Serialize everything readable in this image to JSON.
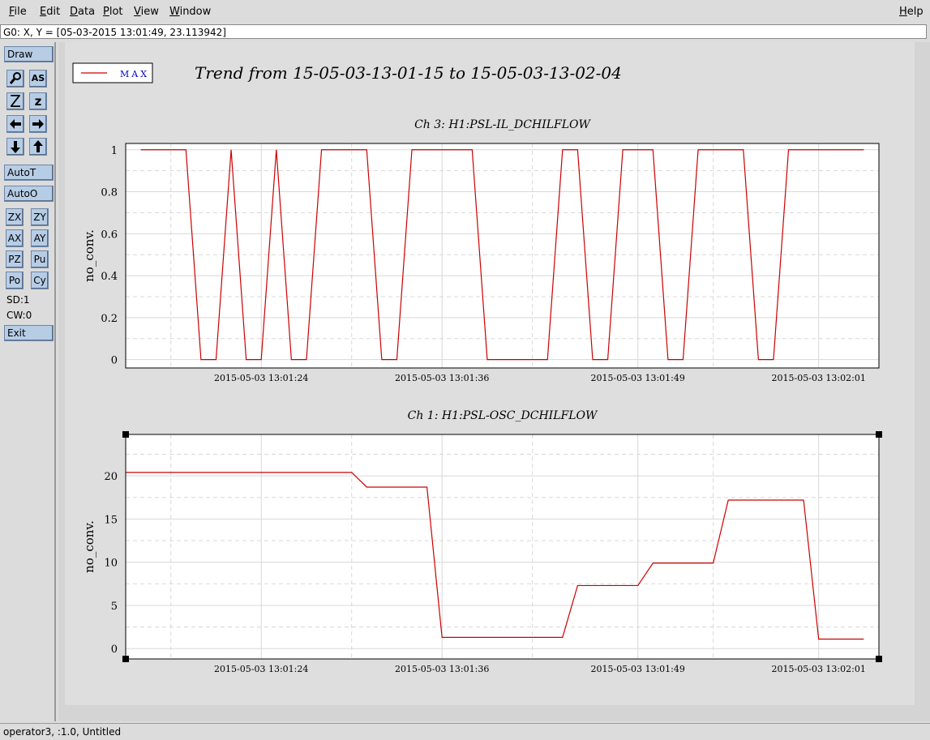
{
  "menu": [
    "File",
    "Edit",
    "Data",
    "Plot",
    "View",
    "Window"
  ],
  "help": "Help",
  "status": "G0: X, Y = [05-03-2015 13:01:49, 23.113942]",
  "toolbar": {
    "draw": "Draw",
    "icon_text": "AS",
    "zoom_in": "Z",
    "zoom_out": "z",
    "auto_t": "AutoT",
    "auto_o": "AutoO",
    "buttons": [
      "ZX",
      "ZY",
      "AX",
      "AY",
      "PZ",
      "Pu",
      "Po",
      "Cy"
    ],
    "sd": "SD:1",
    "cw": "CW:0",
    "exit": "Exit"
  },
  "footer": "operator3, :1.0, Untitled",
  "title": "Trend from 15-05-03-13-01-15 to 15-05-03-13-02-04",
  "chart_data": [
    {
      "type": "line",
      "title": "Ch 3: H1:PSL-IL_DCHILFLOW",
      "ylabel": "no_conv.",
      "x": [
        "2015-05-03 13:01:16",
        "2015-05-03 13:01:19",
        "2015-05-03 13:01:20",
        "2015-05-03 13:01:21",
        "2015-05-03 13:01:22",
        "2015-05-03 13:01:23",
        "2015-05-03 13:01:24",
        "2015-05-03 13:01:25",
        "2015-05-03 13:01:26",
        "2015-05-03 13:01:27",
        "2015-05-03 13:01:28",
        "2015-05-03 13:01:31",
        "2015-05-03 13:01:32",
        "2015-05-03 13:01:33",
        "2015-05-03 13:01:34",
        "2015-05-03 13:01:38",
        "2015-05-03 13:01:39",
        "2015-05-03 13:01:43",
        "2015-05-03 13:01:44",
        "2015-05-03 13:01:45",
        "2015-05-03 13:01:46",
        "2015-05-03 13:01:47",
        "2015-05-03 13:01:48",
        "2015-05-03 13:01:50",
        "2015-05-03 13:01:51",
        "2015-05-03 13:01:52",
        "2015-05-03 13:01:53",
        "2015-05-03 13:01:56",
        "2015-05-03 13:01:57",
        "2015-05-03 13:01:58",
        "2015-05-03 13:01:59",
        "2015-05-03 13:02:04"
      ],
      "series": [
        {
          "name": "MAX",
          "color": "#cc0000",
          "values": [
            1,
            1,
            0,
            0,
            1,
            0,
            0,
            1,
            0,
            0,
            1,
            1,
            0,
            0,
            1,
            1,
            0,
            0,
            1,
            1,
            0,
            0,
            1,
            1,
            0,
            0,
            1,
            1,
            0,
            0,
            1,
            1
          ]
        }
      ],
      "xlim": [
        "2015-05-03 13:01:15",
        "2015-05-03 13:02:05"
      ],
      "xticks": [
        "2015-05-03 13:01:24",
        "2015-05-03 13:01:36",
        "2015-05-03 13:01:49",
        "2015-05-03 13:02:01"
      ],
      "ylim": [
        -0.04,
        1.03
      ],
      "yticks": [
        0,
        0.2,
        0.4,
        0.6,
        0.8,
        1
      ],
      "grid": true
    },
    {
      "type": "line",
      "title": "Ch 1: H1:PSL-OSC_DCHILFLOW",
      "ylabel": "no_conv.",
      "x": [
        "2015-05-03 13:01:15",
        "2015-05-03 13:01:30",
        "2015-05-03 13:01:31",
        "2015-05-03 13:01:35",
        "2015-05-03 13:01:36",
        "2015-05-03 13:01:44",
        "2015-05-03 13:01:45",
        "2015-05-03 13:01:49",
        "2015-05-03 13:01:50",
        "2015-05-03 13:01:54",
        "2015-05-03 13:01:55",
        "2015-05-03 13:02:00",
        "2015-05-03 13:02:01",
        "2015-05-03 13:02:04"
      ],
      "series": [
        {
          "color": "#cc0000",
          "values": [
            20.4,
            20.4,
            18.7,
            18.7,
            1.3,
            1.3,
            7.3,
            7.3,
            9.9,
            9.9,
            17.2,
            17.2,
            1.1,
            1.1
          ]
        }
      ],
      "xlim": [
        "2015-05-03 13:01:15",
        "2015-05-03 13:02:05"
      ],
      "xticks": [
        "2015-05-03 13:01:24",
        "2015-05-03 13:01:36",
        "2015-05-03 13:01:49",
        "2015-05-03 13:02:01"
      ],
      "ylim": [
        -1.2,
        24.8
      ],
      "yticks": [
        0,
        5,
        10,
        15,
        20
      ],
      "grid": true
    }
  ]
}
